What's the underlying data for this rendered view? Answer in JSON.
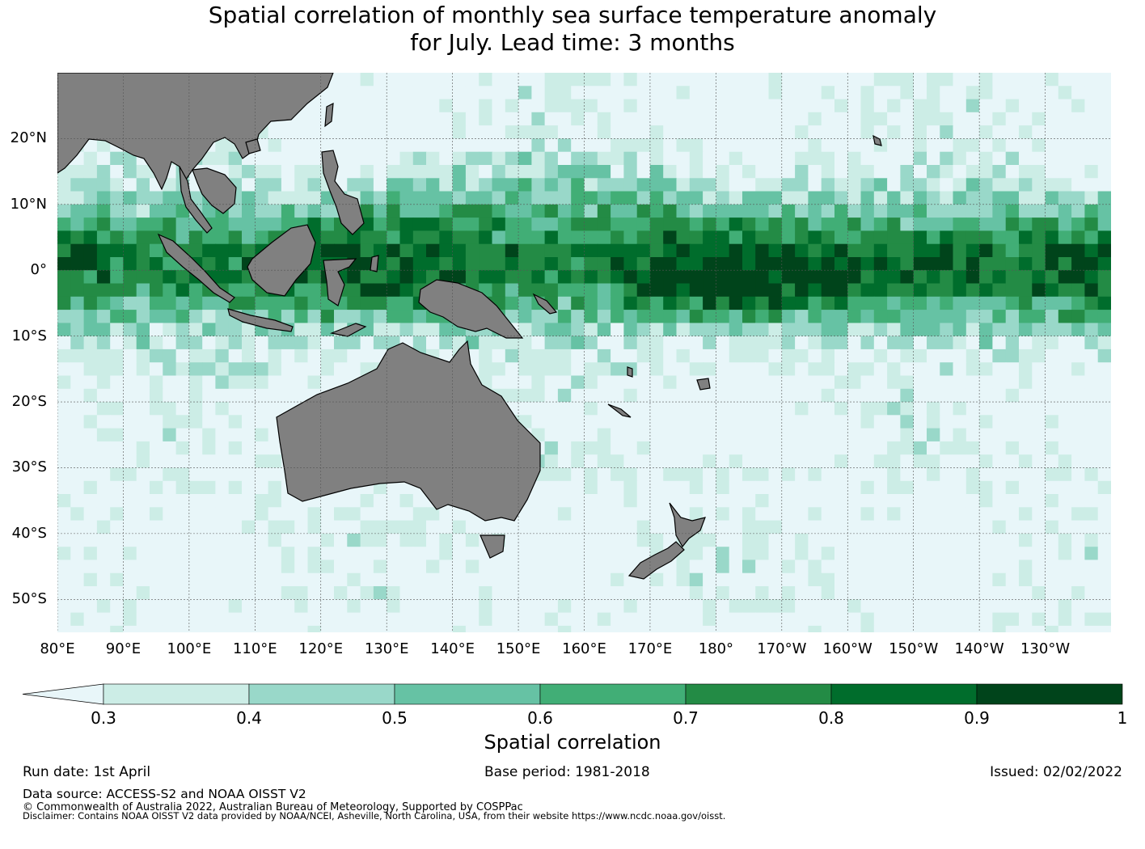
{
  "title": {
    "line1": "Spatial correlation of monthly sea surface temperature anomaly",
    "line2": "for July. Lead time: 3 months"
  },
  "map": {
    "lon_range": [
      80,
      240
    ],
    "lat_range": [
      -55,
      30
    ],
    "land_color": "#808080",
    "lat_labels": [
      "20°N",
      "10°N",
      "0°",
      "10°S",
      "20°S",
      "30°S",
      "40°S",
      "50°S"
    ],
    "lat_values": [
      20,
      10,
      0,
      -10,
      -20,
      -30,
      -40,
      -50
    ],
    "lon_labels": [
      "80°E",
      "90°E",
      "100°E",
      "110°E",
      "120°E",
      "130°E",
      "140°E",
      "150°E",
      "160°E",
      "170°E",
      "180°",
      "170°W",
      "160°W",
      "150°W",
      "140°W",
      "130°W"
    ],
    "lon_values": [
      80,
      90,
      100,
      110,
      120,
      130,
      140,
      150,
      160,
      170,
      180,
      190,
      200,
      210,
      220,
      230
    ]
  },
  "colorbar": {
    "label": "Spatial correlation",
    "ticks": [
      "0.3",
      "0.4",
      "0.5",
      "0.6",
      "0.7",
      "0.8",
      "0.9",
      "1"
    ],
    "levels": [
      0.3,
      0.4,
      0.5,
      0.6,
      0.7,
      0.8,
      0.9,
      1.0
    ],
    "under_color": "#e8f6f9",
    "colors": [
      "#ccede6",
      "#99d8c9",
      "#66c2a4",
      "#41ae76",
      "#238b45",
      "#006d2c",
      "#00441b"
    ]
  },
  "footer": {
    "run_date": "Run date: 1st April",
    "base_period": "Base period: 1981-2018",
    "issued": "Issued: 02/02/2022",
    "data_source": "Data source: ACCESS-S2 and NOAA OISST V2",
    "copyright": "© Commonwealth of Australia 2022, Australian Bureau of Meteorology, Supported by COSPPac",
    "disclaimer": "Disclaimer: Contains NOAA OISST V2 data provided by NOAA/NCEI, Asheville, North Carolina, USA, from their website https://www.ncdc.noaa.gov/oisst."
  }
}
